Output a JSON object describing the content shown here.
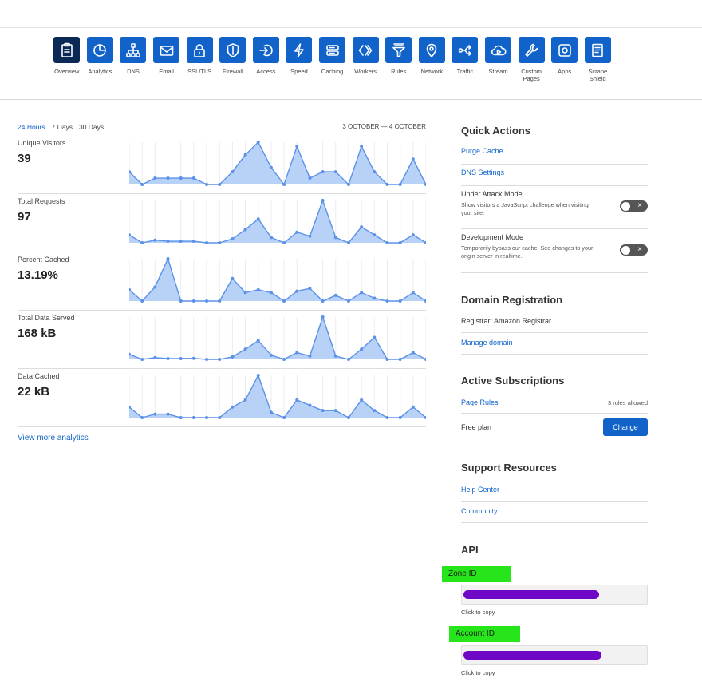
{
  "nav": {
    "items": [
      {
        "label": "Overview",
        "icon": "clipboard-icon",
        "active": true
      },
      {
        "label": "Analytics",
        "icon": "pie-chart-icon"
      },
      {
        "label": "DNS",
        "icon": "network-tree-icon"
      },
      {
        "label": "Email",
        "icon": "envelope-icon"
      },
      {
        "label": "SSL/TLS",
        "icon": "lock-icon"
      },
      {
        "label": "Firewall",
        "icon": "shield-icon"
      },
      {
        "label": "Access",
        "icon": "sign-in-icon"
      },
      {
        "label": "Speed",
        "icon": "lightning-icon"
      },
      {
        "label": "Caching",
        "icon": "server-stack-icon"
      },
      {
        "label": "Workers",
        "icon": "workers-chevrons-icon"
      },
      {
        "label": "Rules",
        "icon": "filter-funnel-icon"
      },
      {
        "label": "Network",
        "icon": "location-pin-icon"
      },
      {
        "label": "Traffic",
        "icon": "traffic-routing-icon"
      },
      {
        "label": "Stream",
        "icon": "cloud-play-icon"
      },
      {
        "label": "Custom\nPages",
        "icon": "wrench-icon"
      },
      {
        "label": "Apps",
        "icon": "apps-square-icon"
      },
      {
        "label": "Scrape\nShield",
        "icon": "document-icon"
      }
    ]
  },
  "analytics": {
    "ranges": [
      "24 Hours",
      "7 Days",
      "30 Days"
    ],
    "selected_range": "24 Hours",
    "date_range": "3 OCTOBER — 4 OCTOBER",
    "view_more": "View more analytics",
    "accent": "#5b91e8",
    "fill": "#b8d2f7"
  },
  "metrics": [
    {
      "label": "Unique Visitors",
      "value": "39"
    },
    {
      "label": "Total Requests",
      "value": "97"
    },
    {
      "label": "Percent Cached",
      "value": "13.19%"
    },
    {
      "label": "Total Data Served",
      "value": "168 kB"
    },
    {
      "label": "Data Cached",
      "value": "22 kB"
    }
  ],
  "chart_data": [
    {
      "type": "area",
      "name": "Unique Visitors",
      "values": [
        3,
        0,
        1.5,
        1.5,
        1.5,
        1.5,
        0,
        0,
        3,
        7,
        10,
        4,
        0,
        9,
        1.5,
        3,
        3,
        0,
        9,
        3,
        0,
        0,
        6,
        0
      ]
    },
    {
      "type": "area",
      "name": "Total Requests",
      "values": [
        3,
        0,
        1,
        0.6,
        0.6,
        0.6,
        0,
        0,
        1.5,
        5,
        9,
        2,
        0,
        4,
        2.5,
        16,
        2,
        0,
        6,
        3,
        0,
        0,
        3,
        0
      ]
    },
    {
      "type": "area",
      "name": "Percent Cached",
      "values": [
        8,
        0,
        10,
        30,
        0,
        0,
        0,
        0,
        16,
        6,
        8,
        6,
        0,
        7,
        9,
        0,
        4,
        0,
        6,
        2,
        0,
        0,
        6,
        0
      ]
    },
    {
      "type": "area",
      "name": "Total Data Served",
      "values": [
        3,
        0,
        1,
        0.5,
        0.5,
        0.6,
        0,
        0,
        1.5,
        6,
        11,
        2.5,
        0,
        4,
        2,
        25,
        2,
        0,
        6,
        13,
        0,
        0,
        4,
        0
      ]
    },
    {
      "type": "area",
      "name": "Data Cached",
      "values": [
        3,
        0,
        1,
        1,
        0,
        0,
        0,
        0,
        3,
        5,
        12,
        1.5,
        0,
        5,
        3.5,
        2,
        2,
        0,
        5,
        2,
        0,
        0,
        3,
        0
      ]
    }
  ],
  "quick_actions": {
    "title": "Quick Actions",
    "purge_cache": "Purge Cache",
    "dns_settings": "DNS Settings",
    "under_attack": {
      "title": "Under Attack Mode",
      "desc": "Show visitors a JavaScript challenge when visiting your site."
    },
    "dev_mode": {
      "title": "Development Mode",
      "desc": "Temporarily bypass our cache. See changes to your origin server in realtime."
    },
    "toggle_off": "×"
  },
  "domain_registration": {
    "title": "Domain Registration",
    "registrar": "Registrar: Amazon Registrar",
    "manage": "Manage domain"
  },
  "subscriptions": {
    "title": "Active Subscriptions",
    "page_rules": "Page Rules",
    "page_rules_note": "3 rules allowed",
    "free_plan": "Free plan",
    "change": "Change"
  },
  "support": {
    "title": "Support Resources",
    "help_center": "Help Center",
    "community": "Community"
  },
  "api": {
    "title": "API",
    "zone_id_label": "Zone ID",
    "account_id_label": "Account ID",
    "click_to_copy": "Click to copy",
    "highlight": "#27e51b",
    "redaction": "#6e07c6"
  }
}
